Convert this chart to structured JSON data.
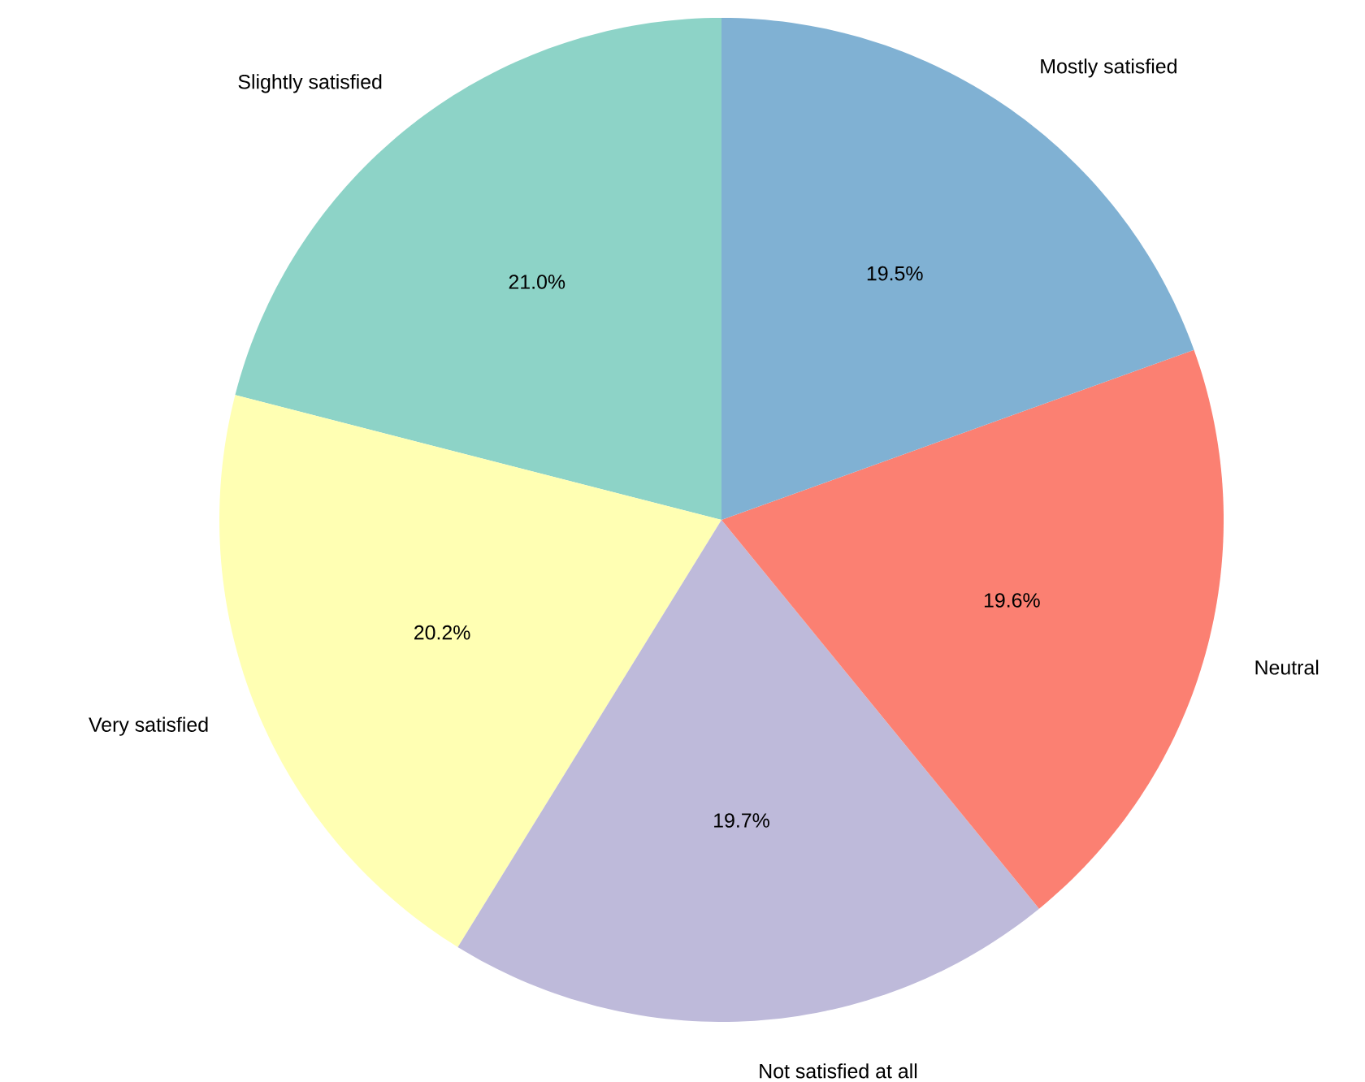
{
  "chart_data": {
    "type": "pie",
    "categories": [
      "Slightly satisfied",
      "Very satisfied",
      "Not satisfied at all",
      "Neutral",
      "Mostly satisfied"
    ],
    "values": [
      21.0,
      20.2,
      19.7,
      19.6,
      19.5
    ],
    "value_labels": [
      "21.0%",
      "20.2%",
      "19.7%",
      "19.6%",
      "19.5%"
    ],
    "colors": [
      "#8dd3c7",
      "#ffffb3",
      "#bebada",
      "#fb8072",
      "#80b1d3"
    ]
  }
}
